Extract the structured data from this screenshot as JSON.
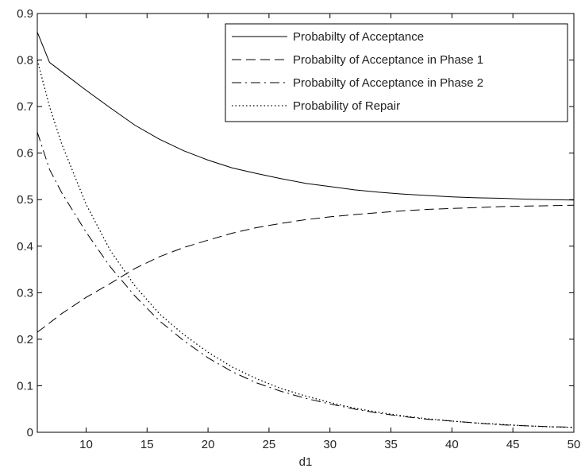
{
  "chart_data": {
    "type": "line",
    "xlabel": "d1",
    "ylabel": "",
    "xlim": [
      6,
      50
    ],
    "ylim": [
      0,
      0.9
    ],
    "xticks": [
      "10",
      "15",
      "20",
      "25",
      "30",
      "35",
      "40",
      "45",
      "50"
    ],
    "yticks": [
      "0",
      "0.1",
      "0.2",
      "0.3",
      "0.4",
      "0.5",
      "0.6",
      "0.7",
      "0.8",
      "0.9"
    ],
    "grid": false,
    "legend_position": "top-right",
    "series": [
      {
        "name": "Probabilty of Acceptance",
        "style": "solid",
        "x": [
          6,
          7,
          8,
          10,
          12,
          14,
          16,
          18,
          20,
          22,
          24,
          26,
          28,
          30,
          32,
          34,
          36,
          38,
          40,
          42,
          44,
          46,
          48,
          50
        ],
        "y": [
          0.86,
          0.795,
          0.775,
          0.735,
          0.697,
          0.66,
          0.63,
          0.605,
          0.585,
          0.568,
          0.556,
          0.545,
          0.535,
          0.528,
          0.521,
          0.516,
          0.512,
          0.509,
          0.506,
          0.504,
          0.503,
          0.501,
          0.5,
          0.499
        ]
      },
      {
        "name": "Probabilty of Acceptance in Phase 1",
        "style": "dashed",
        "x": [
          6,
          7,
          8,
          10,
          12,
          14,
          16,
          18,
          20,
          22,
          24,
          26,
          28,
          30,
          32,
          34,
          36,
          38,
          40,
          42,
          44,
          46,
          48,
          50
        ],
        "y": [
          0.215,
          0.235,
          0.255,
          0.29,
          0.32,
          0.352,
          0.377,
          0.397,
          0.413,
          0.428,
          0.44,
          0.449,
          0.457,
          0.463,
          0.468,
          0.472,
          0.476,
          0.479,
          0.481,
          0.483,
          0.485,
          0.486,
          0.487,
          0.488
        ]
      },
      {
        "name": "Probabilty of Acceptance in Phase 2",
        "style": "dashdot",
        "x": [
          6,
          7,
          8,
          10,
          12,
          14,
          16,
          18,
          20,
          22,
          24,
          26,
          28,
          30,
          32,
          34,
          36,
          38,
          40,
          42,
          44,
          46,
          48,
          50
        ],
        "y": [
          0.645,
          0.565,
          0.515,
          0.43,
          0.355,
          0.293,
          0.24,
          0.197,
          0.16,
          0.13,
          0.106,
          0.088,
          0.073,
          0.061,
          0.05,
          0.041,
          0.034,
          0.028,
          0.024,
          0.02,
          0.016,
          0.014,
          0.012,
          0.011
        ]
      },
      {
        "name": "Probability of Repair",
        "style": "dotted",
        "x": [
          6,
          7,
          8,
          10,
          12,
          14,
          16,
          18,
          20,
          22,
          24,
          26,
          28,
          30,
          32,
          34,
          36,
          38,
          40,
          42,
          44,
          46,
          48,
          50
        ],
        "y": [
          0.8,
          0.7,
          0.62,
          0.49,
          0.39,
          0.315,
          0.255,
          0.21,
          0.172,
          0.14,
          0.115,
          0.094,
          0.078,
          0.064,
          0.052,
          0.043,
          0.035,
          0.029,
          0.024,
          0.02,
          0.017,
          0.014,
          0.012,
          0.01
        ]
      }
    ]
  }
}
